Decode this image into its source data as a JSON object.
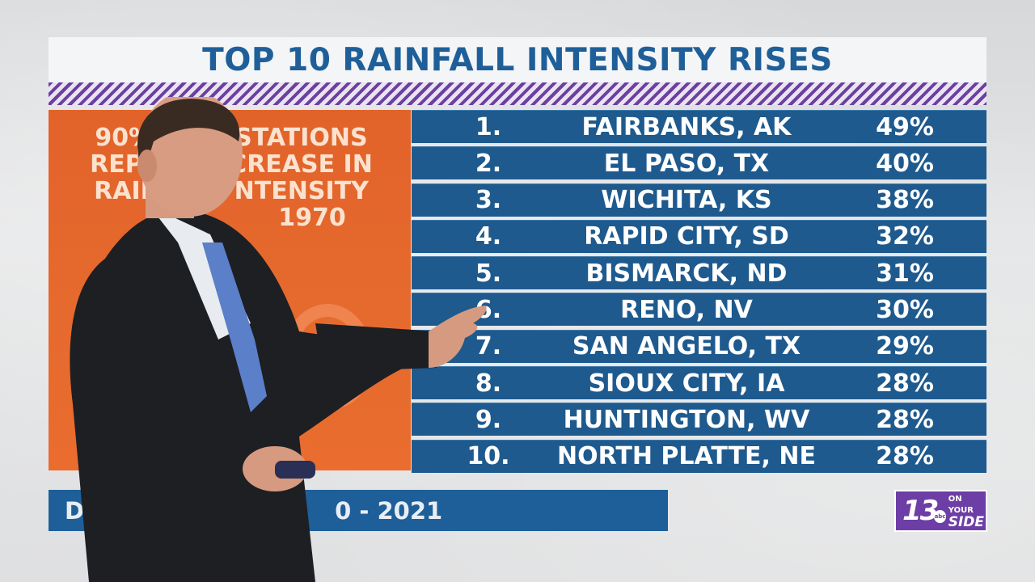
{
  "title": "TOP 10 RAINFALL INTENSITY RISES",
  "side_panel": {
    "lines": [
      "90%",
      "STATIONS",
      "REPO",
      "CREASE IN",
      "RAIN",
      "NTENSITY",
      "1970"
    ]
  },
  "rankings": [
    {
      "rank": "1.",
      "city": "FAIRBANKS, AK",
      "pct": "49%"
    },
    {
      "rank": "2.",
      "city": "EL PASO, TX",
      "pct": "40%"
    },
    {
      "rank": "3.",
      "city": "WICHITA, KS",
      "pct": "38%"
    },
    {
      "rank": "4.",
      "city": "RAPID CITY, SD",
      "pct": "32%"
    },
    {
      "rank": "5.",
      "city": "BISMARCK, ND",
      "pct": "31%"
    },
    {
      "rank": "6.",
      "city": "RENO, NV",
      "pct": "30%"
    },
    {
      "rank": "7.",
      "city": "SAN ANGELO, TX",
      "pct": "29%"
    },
    {
      "rank": "8.",
      "city": "SIOUX CITY, IA",
      "pct": "28%"
    },
    {
      "rank": "9.",
      "city": "HUNTINGTON, WV",
      "pct": "28%"
    },
    {
      "rank": "10.",
      "city": "NORTH PLATTE, NE",
      "pct": "28%"
    }
  ],
  "footer": {
    "left": "D",
    "right": "0 - 2021"
  },
  "logo": {
    "number": "13",
    "network": "abc",
    "top": "ON YOUR",
    "bottom": "SIDE"
  },
  "colors": {
    "title": "#1f5f99",
    "table_row": "#1e5a8e",
    "panel": "#e2632a",
    "brand": "#6d3ea5"
  }
}
